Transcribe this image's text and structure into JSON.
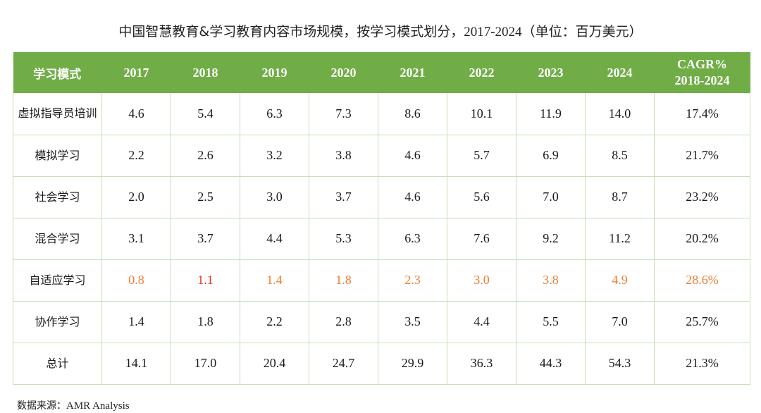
{
  "title": "中国智慧教育&学习教育内容市场规模，按学习模式划分，",
  "title_years": "2017-2024",
  "title_unit": "（单位：百万美元）",
  "header": {
    "mode": "学习模式",
    "years": [
      "2017",
      "2018",
      "2019",
      "2020",
      "2021",
      "2022",
      "2023",
      "2024"
    ],
    "cagr_line1": "CAGR%",
    "cagr_line2": "2018-2024"
  },
  "rows": [
    {
      "label": "虚拟指导员培训",
      "values": [
        "4.6",
        "5.4",
        "6.3",
        "7.3",
        "8.6",
        "10.1",
        "11.9",
        "14.0"
      ],
      "cagr": "17.4%"
    },
    {
      "label": "模拟学习",
      "values": [
        "2.2",
        "2.6",
        "3.2",
        "3.8",
        "4.6",
        "5.7",
        "6.9",
        "8.5"
      ],
      "cagr": "21.7%"
    },
    {
      "label": "社会学习",
      "values": [
        "2.0",
        "2.5",
        "3.0",
        "3.7",
        "4.6",
        "5.6",
        "7.0",
        "8.7"
      ],
      "cagr": "23.2%"
    },
    {
      "label": "混合学习",
      "values": [
        "3.1",
        "3.7",
        "4.4",
        "5.3",
        "6.3",
        "7.6",
        "9.2",
        "11.2"
      ],
      "cagr": "20.2%"
    },
    {
      "label": "自适应学习",
      "values": [
        "0.8",
        "1.1",
        "1.4",
        "1.8",
        "2.3",
        "3.0",
        "3.8",
        "4.9"
      ],
      "cagr": "28.6%"
    },
    {
      "label": "协作学习",
      "values": [
        "1.4",
        "1.8",
        "2.2",
        "2.8",
        "3.5",
        "4.4",
        "5.5",
        "7.0"
      ],
      "cagr": "25.7%"
    },
    {
      "label": "总计",
      "values": [
        "14.1",
        "17.0",
        "20.4",
        "24.7",
        "29.9",
        "36.3",
        "44.3",
        "54.3"
      ],
      "cagr": "21.3%"
    }
  ],
  "highlight_row": 4,
  "colors": {
    "header_bg": "#70ad47",
    "grid": "#c6e0b4",
    "highlight": "#ed7d31",
    "highlight_alt": "#e0301e"
  },
  "source_label": "数据来源：",
  "source_value": "AMR Analysis"
}
